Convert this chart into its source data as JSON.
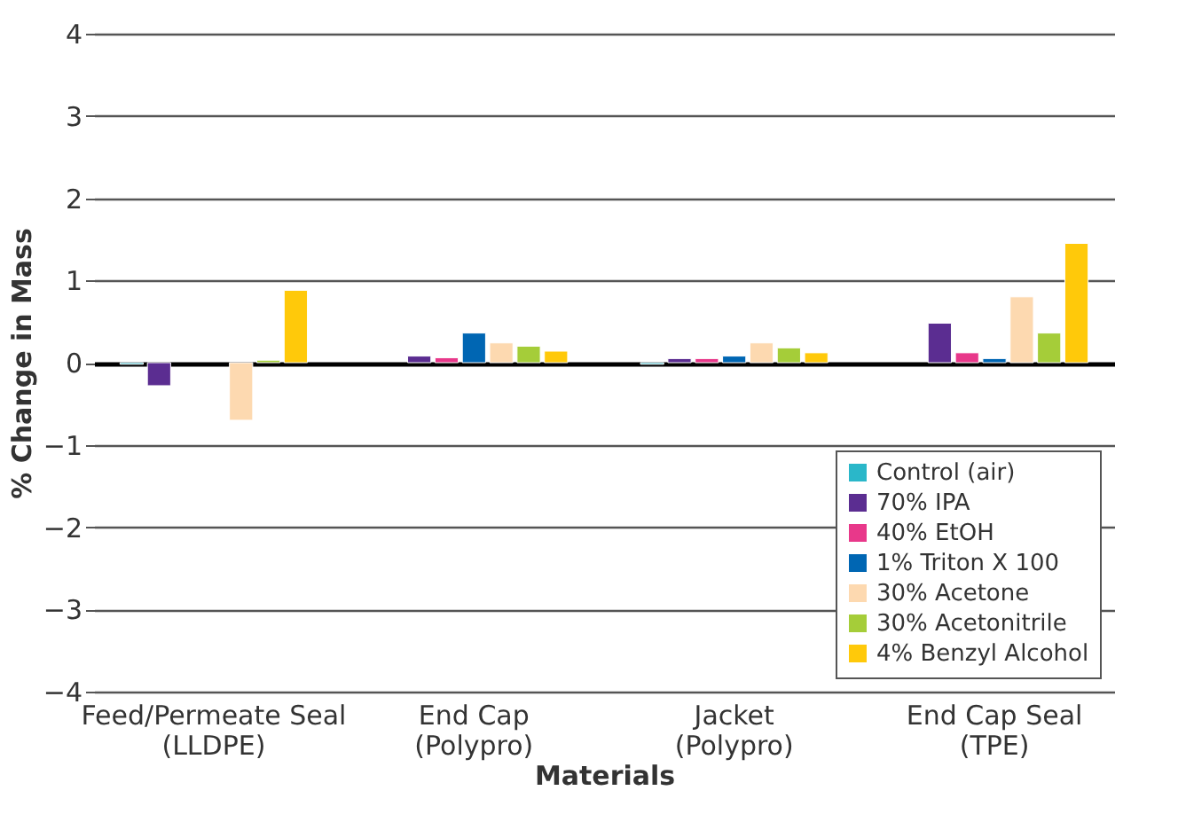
{
  "chart_data": {
    "type": "bar",
    "xlabel": "Materials",
    "ylabel": "% Change in Mass",
    "categories": [
      "Feed/Permeate Seal\n(LLDPE)",
      "End Cap\n(Polypro)",
      "Jacket\n(Polypro)",
      "End Cap Seal\n(TPE)"
    ],
    "series": [
      {
        "name": "Control (air)",
        "color": "#2ab7c9",
        "values": [
          -0.02,
          null,
          -0.02,
          null
        ]
      },
      {
        "name": "70% IPA",
        "color": "#5b2d91",
        "values": [
          -0.28,
          0.08,
          0.05,
          0.48
        ]
      },
      {
        "name": "40% EtOH",
        "color": "#e8388a",
        "values": [
          null,
          0.06,
          0.05,
          0.12
        ]
      },
      {
        "name": "1% Triton X 100",
        "color": "#0066b3",
        "values": [
          null,
          0.36,
          0.08,
          0.05
        ]
      },
      {
        "name": "30% Acetone",
        "color": "#fdd9b0",
        "values": [
          -0.7,
          0.24,
          0.24,
          0.8
        ]
      },
      {
        "name": "30% Acetonitrile",
        "color": "#a5cd39",
        "values": [
          0.03,
          0.2,
          0.18,
          0.36
        ]
      },
      {
        "name": "4% Benzyl Alcohol",
        "color": "#ffc90a",
        "values": [
          0.88,
          0.14,
          0.12,
          1.45
        ]
      }
    ],
    "ylim": [
      -4,
      4
    ],
    "yticks": [
      -4,
      -3,
      -2,
      -1,
      0,
      1,
      2,
      3,
      4
    ],
    "grid": "y",
    "legend": "bottom right"
  }
}
